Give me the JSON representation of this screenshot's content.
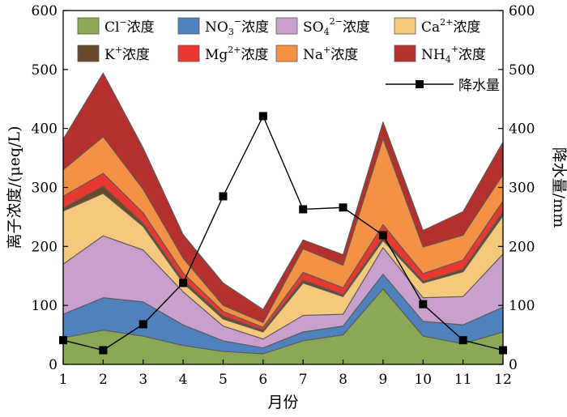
{
  "chart_data": {
    "type": "area",
    "stacked": true,
    "xlabel": "月份",
    "ylabel": "离子浓度/(μeq/L)",
    "y2label": "降水量/mm",
    "x": [
      1,
      2,
      3,
      4,
      5,
      6,
      7,
      8,
      9,
      10,
      11,
      12
    ],
    "xlim": [
      1,
      12
    ],
    "ylim": [
      0,
      600
    ],
    "y2lim": [
      0,
      600
    ],
    "yticks": [
      0,
      100,
      200,
      300,
      400,
      500,
      600
    ],
    "grid": false,
    "legend_position": "top",
    "series": [
      {
        "name_main": "Cl",
        "name_sup": "−",
        "name_sub": "",
        "name_tail": "浓度",
        "color": "#8aa856",
        "values": [
          45,
          58,
          48,
          32,
          22,
          18,
          40,
          50,
          128,
          48,
          35,
          55
        ]
      },
      {
        "name_main": "NO",
        "name_sup": "−",
        "name_sub": "3",
        "name_tail": "浓度",
        "color": "#4f81bd",
        "values": [
          40,
          55,
          58,
          35,
          18,
          10,
          15,
          15,
          25,
          25,
          32,
          42
        ]
      },
      {
        "name_main": "SO",
        "name_sup": "2−",
        "name_sub": "4",
        "name_tail": "浓度",
        "color": "#c9a0cc",
        "values": [
          85,
          105,
          88,
          56,
          25,
          15,
          28,
          20,
          45,
          40,
          48,
          90
        ]
      },
      {
        "name_main": "Ca",
        "name_sup": "2+",
        "name_sub": "",
        "name_tail": "浓度",
        "color": "#f5c97b",
        "values": [
          90,
          72,
          40,
          15,
          12,
          12,
          55,
          30,
          12,
          25,
          42,
          65
        ]
      },
      {
        "name_main": "K",
        "name_sup": "+",
        "name_sub": "",
        "name_tail": "浓度",
        "color": "#6b4a2b",
        "values": [
          5,
          12,
          5,
          5,
          5,
          3,
          5,
          3,
          5,
          3,
          4,
          7
        ]
      },
      {
        "name_main": "Mg",
        "name_sup": "2+",
        "name_sub": "",
        "name_tail": "浓度",
        "color": "#e8382f",
        "values": [
          20,
          22,
          18,
          12,
          8,
          5,
          13,
          12,
          22,
          13,
          16,
          18
        ]
      },
      {
        "name_main": "Na",
        "name_sup": "+",
        "name_sub": "",
        "name_tail": "浓度",
        "color": "#f59145",
        "values": [
          45,
          62,
          40,
          25,
          10,
          8,
          40,
          38,
          146,
          45,
          42,
          45
        ]
      },
      {
        "name_main": "NH",
        "name_sup": "+",
        "name_sub": "4",
        "name_tail": "浓度",
        "color": "#b3302c",
        "values": [
          52,
          108,
          70,
          40,
          38,
          22,
          15,
          18,
          28,
          28,
          40,
          55
        ]
      }
    ],
    "line_series": {
      "name": "降水量",
      "axis": "right",
      "color": "#000000",
      "marker": "square",
      "values": [
        41,
        24,
        68,
        138,
        285,
        421,
        263,
        266,
        219,
        102,
        41,
        24
      ]
    }
  }
}
